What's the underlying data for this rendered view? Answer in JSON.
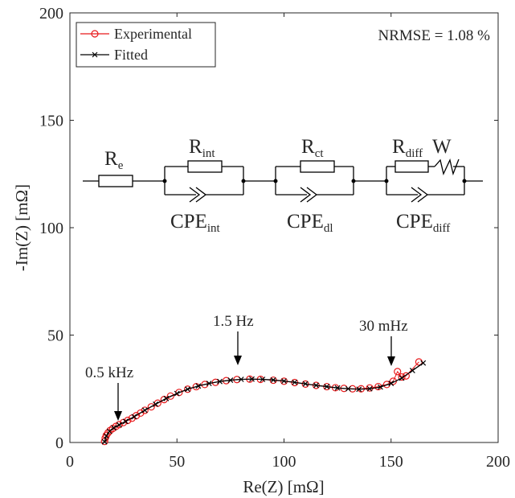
{
  "chart_data": {
    "type": "line",
    "xlabel": "Re(Z) [mΩ]",
    "ylabel": "-Im(Z) [mΩ]",
    "xlim": [
      0,
      200
    ],
    "xticks": [
      0,
      50,
      100,
      150,
      200
    ],
    "ylim": [
      0,
      200
    ],
    "yticks": [
      0,
      50,
      100,
      150,
      200
    ],
    "legend": "upper left",
    "series": [
      {
        "name": "Experimental",
        "color": "#e8191b",
        "marker": "circle",
        "x": [
          16.2,
          16.5,
          17,
          17.8,
          18.8,
          20,
          21.5,
          23,
          25,
          27,
          29,
          31,
          33,
          35,
          38,
          41,
          44,
          47,
          51,
          55,
          59,
          63,
          68,
          73,
          78,
          84,
          89,
          95,
          100,
          105,
          110,
          115,
          120,
          124,
          128,
          132,
          136,
          140,
          144,
          148,
          151,
          153,
          155,
          157,
          163
        ],
        "values": [
          0.5,
          2,
          3.3,
          4.5,
          5.6,
          6.5,
          7.5,
          8.3,
          9.3,
          10.3,
          11.3,
          12.5,
          13.7,
          15,
          16.6,
          18.3,
          20,
          21.6,
          23.3,
          24.8,
          26,
          27,
          28,
          28.8,
          29.3,
          29.5,
          29.4,
          29,
          28.5,
          27.9,
          27.2,
          26.6,
          26,
          25.5,
          25.2,
          25,
          25,
          25.4,
          26,
          27,
          28.5,
          33,
          30.5,
          31,
          37.5
        ]
      },
      {
        "name": "Fitted",
        "color": "#000000",
        "marker": "x",
        "x": [
          16.2,
          17,
          18.5,
          20.5,
          23,
          26,
          30,
          35,
          40,
          45,
          50,
          55,
          60,
          65,
          70,
          75,
          80,
          85,
          90,
          95,
          100,
          105,
          110,
          115,
          120,
          125,
          130,
          135,
          140,
          145,
          150,
          155,
          160,
          165
        ],
        "values": [
          0.3,
          3,
          5.2,
          6.8,
          8.2,
          9.8,
          12,
          15,
          17.8,
          20.5,
          22.8,
          24.8,
          26.3,
          27.5,
          28.4,
          29,
          29.4,
          29.5,
          29.4,
          29.1,
          28.6,
          28,
          27.3,
          26.6,
          26,
          25.4,
          25,
          24.8,
          25,
          25.8,
          27.5,
          30,
          33.5,
          37
        ]
      }
    ],
    "annotations": [
      "NRMSE = 1.08 %",
      "0.5 kHz",
      "1.5 Hz",
      "30 mHz"
    ],
    "circuit": [
      {
        "text": "R",
        "sub": "e"
      },
      {
        "text": "R",
        "sub": "int"
      },
      {
        "text": "CPE",
        "sub": "int"
      },
      {
        "text": "R",
        "sub": "ct"
      },
      {
        "text": "CPE",
        "sub": "dl"
      },
      {
        "text": "R",
        "sub": "diff"
      },
      {
        "text": "W",
        "sub": null
      },
      {
        "text": "CPE",
        "sub": "diff"
      }
    ]
  }
}
